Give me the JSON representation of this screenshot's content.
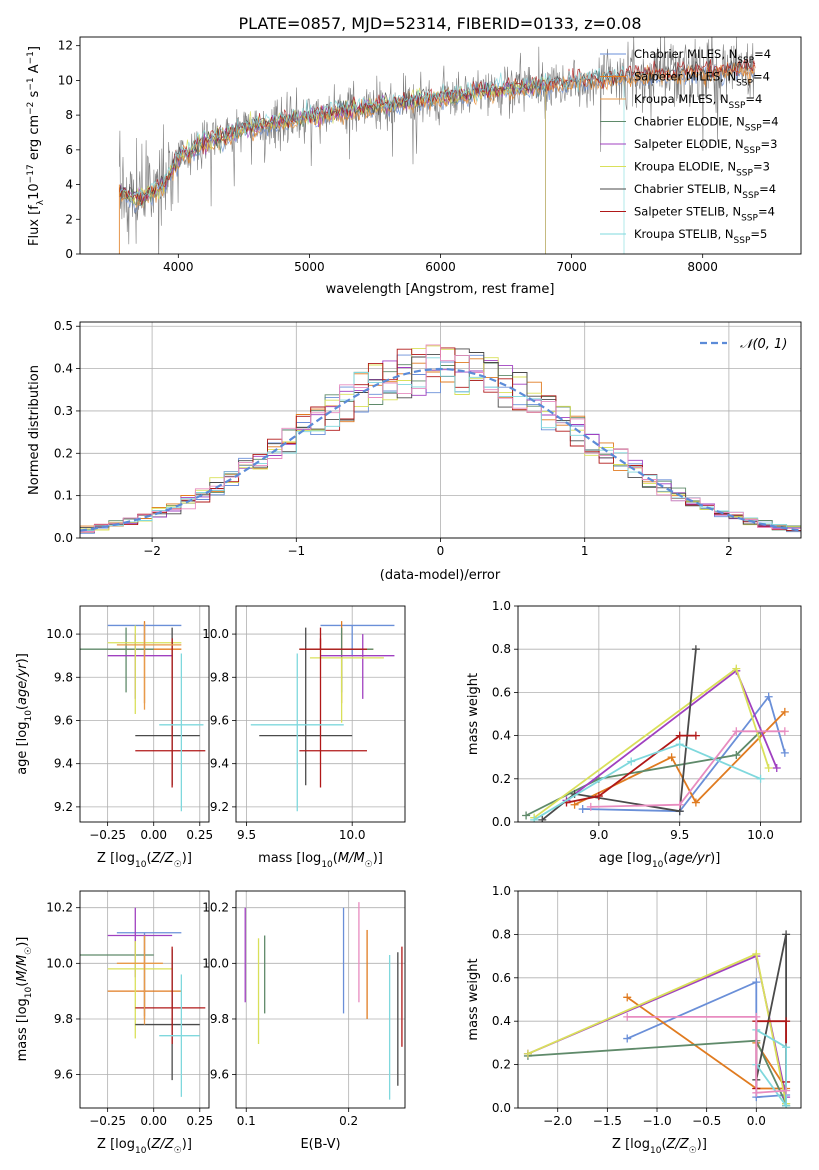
{
  "figure": {
    "title": "PLATE=0857, MJD=52314, FIBERID=0133, z=0.08"
  },
  "palette": {
    "Chabrier MILES": "#6a8fd8",
    "Salpeter MILES": "#e07b20",
    "Kroupa MILES": "#e89a4a",
    "Chabrier ELODIE": "#5f8a6a",
    "Salpeter ELODIE": "#a040c0",
    "Kroupa ELODIE": "#d9e05a",
    "Chabrier STELIB": "#4a4a4a",
    "Salpeter STELIB": "#b01818",
    "Kroupa STELIB": "#7fd8dd",
    "data": "#7f7f7f",
    "pink": "#e88cc0"
  },
  "chart_data": [
    {
      "id": "spectrum",
      "type": "line",
      "xlabel": "wavelength [Angstrom, rest frame]",
      "ylabel": "Flux [f_λ10^-17 erg cm^-2 s^-1 A^-1]",
      "xlim": [
        3250,
        8750
      ],
      "ylim": [
        0,
        12.5
      ],
      "xticks": [
        4000,
        5000,
        6000,
        7000,
        8000
      ],
      "yticks": [
        0,
        2,
        4,
        6,
        8,
        10,
        12
      ],
      "grid": false,
      "legend_position": "top-right",
      "legend": [
        {
          "label": "Chabrier MILES, N_SSP=4",
          "key": "Chabrier MILES"
        },
        {
          "label": "Salpeter MILES, N_SSP=4",
          "key": "Salpeter MILES"
        },
        {
          "label": "Kroupa MILES, N_SSP=4",
          "key": "Kroupa MILES"
        },
        {
          "label": "Chabrier ELODIE, N_SSP=4",
          "key": "Chabrier ELODIE"
        },
        {
          "label": "Salpeter ELODIE, N_SSP=3",
          "key": "Salpeter ELODIE"
        },
        {
          "label": "Kroupa ELODIE, N_SSP=3",
          "key": "Kroupa ELODIE"
        },
        {
          "label": "Chabrier STELIB, N_SSP=4",
          "key": "Chabrier STELIB"
        },
        {
          "label": "Salpeter STELIB, N_SSP=4",
          "key": "Salpeter STELIB"
        },
        {
          "label": "Kroupa STELIB, N_SSP=5",
          "key": "Kroupa STELIB"
        }
      ],
      "continuum": {
        "x": [
          3550,
          3700,
          3900,
          4000,
          4200,
          4500,
          5000,
          5500,
          6000,
          6500,
          7000,
          7400,
          8000,
          8400
        ],
        "y": [
          3.5,
          3.2,
          4.0,
          5.6,
          6.4,
          7.2,
          7.9,
          8.5,
          9.0,
          9.5,
          9.9,
          10.2,
          10.5,
          10.7
        ]
      }
    },
    {
      "id": "residual-hist",
      "type": "histogram",
      "xlabel": "(data-model)/error",
      "ylabel": "Normed distribution",
      "xlim": [
        -2.5,
        2.5
      ],
      "ylim": [
        0,
        0.51
      ],
      "xticks": [
        -2,
        -1,
        0,
        1,
        2
      ],
      "yticks": [
        0.0,
        0.1,
        0.2,
        0.3,
        0.4,
        0.5
      ],
      "grid": true,
      "legend_position": "top-right",
      "legend_label": "𝒩(0, 1)",
      "bin_width": 0.1
    },
    {
      "id": "age-vs-Z",
      "type": "errorbar",
      "xlabel": "Z [log10(Z/Z_☉)]",
      "ylabel": "age  [log10(age/yr)]",
      "xlim": [
        -0.4,
        0.3
      ],
      "ylim": [
        9.13,
        10.13
      ],
      "xticks": [
        -0.25,
        0.0,
        0.25
      ],
      "yticks": [
        9.2,
        9.4,
        9.6,
        9.8,
        10.0
      ],
      "grid": true,
      "points": [
        {
          "key": "Chabrier MILES",
          "x": -0.05,
          "xerr": [
            0.2,
            0.2
          ],
          "y": 10.04,
          "yerr": [
            0.14,
            0.0
          ]
        },
        {
          "key": "Salpeter MILES",
          "x": -0.05,
          "xerr": [
            0.2,
            0.2
          ],
          "y": 9.93,
          "yerr": [
            0.25,
            0.13
          ]
        },
        {
          "key": "Chabrier ELODIE",
          "x": -0.15,
          "xerr": [
            0.25,
            0.15
          ],
          "y": 9.93,
          "yerr": [
            0.2,
            0.1
          ]
        },
        {
          "key": "Salpeter ELODIE",
          "x": -0.1,
          "xerr": [
            0.15,
            0.2
          ],
          "y": 9.9,
          "yerr": [
            0.2,
            0.1
          ]
        },
        {
          "key": "Kroupa ELODIE",
          "x": -0.1,
          "xerr": [
            0.15,
            0.25
          ],
          "y": 9.96,
          "yerr": [
            0.33,
            0.08
          ]
        },
        {
          "key": "Chabrier STELIB",
          "x": 0.1,
          "xerr": [
            0.2,
            0.15
          ],
          "y": 9.53,
          "yerr": [
            0.23,
            0.5
          ]
        },
        {
          "key": "Salpeter STELIB",
          "x": 0.1,
          "xerr": [
            0.2,
            0.18
          ],
          "y": 9.46,
          "yerr": [
            0.17,
            0.52
          ]
        },
        {
          "key": "Kroupa STELIB",
          "x": 0.15,
          "xerr": [
            0.12,
            0.12
          ],
          "y": 9.58,
          "yerr": [
            0.4,
            0.33
          ]
        },
        {
          "key": "Kroupa MILES",
          "x": -0.05,
          "xerr": [
            0.15,
            0.2
          ],
          "y": 9.95,
          "yerr": [
            0.3,
            0.1
          ]
        }
      ]
    },
    {
      "id": "age-vs-mass",
      "type": "errorbar",
      "xlabel": "mass [log10(M/M_☉)]",
      "ylabel": "",
      "xlim": [
        9.45,
        10.25
      ],
      "ylim": [
        9.13,
        10.13
      ],
      "xticks": [
        9.5,
        10.0
      ],
      "yticks": [
        9.2,
        9.4,
        9.6,
        9.8,
        10.0
      ],
      "grid": true,
      "points": [
        {
          "key": "Chabrier MILES",
          "x": 10.0,
          "xerr": [
            0.15,
            0.2
          ],
          "y": 10.04,
          "yerr": [
            0.14,
            0.0
          ]
        },
        {
          "key": "Salpeter MILES",
          "x": 9.95,
          "xerr": [
            0.2,
            0.15
          ],
          "y": 9.93,
          "yerr": [
            0.25,
            0.13
          ]
        },
        {
          "key": "Chabrier ELODIE",
          "x": 9.95,
          "xerr": [
            0.2,
            0.15
          ],
          "y": 9.93,
          "yerr": [
            0.2,
            0.1
          ]
        },
        {
          "key": "Salpeter ELODIE",
          "x": 10.05,
          "xerr": [
            0.2,
            0.15
          ],
          "y": 9.9,
          "yerr": [
            0.2,
            0.1
          ]
        },
        {
          "key": "Kroupa ELODIE",
          "x": 9.95,
          "xerr": [
            0.15,
            0.2
          ],
          "y": 9.89,
          "yerr": [
            0.3,
            0.0
          ]
        },
        {
          "key": "Chabrier STELIB",
          "x": 9.78,
          "xerr": [
            0.22,
            0.22
          ],
          "y": 9.53,
          "yerr": [
            0.23,
            0.5
          ]
        },
        {
          "key": "Salpeter STELIB",
          "x": 9.85,
          "xerr": [
            0.1,
            0.22
          ],
          "y": 9.46,
          "yerr": [
            0.17,
            0.52
          ]
        },
        {
          "key": "Kroupa STELIB",
          "x": 9.74,
          "xerr": [
            0.22,
            0.22
          ],
          "y": 9.58,
          "yerr": [
            0.4,
            0.33
          ]
        },
        {
          "key": "Salpeter STELIB",
          "x": 9.85,
          "xerr": [
            0.1,
            0.22
          ],
          "y": 9.93,
          "yerr": [
            0.0,
            0.1
          ]
        }
      ]
    },
    {
      "id": "massweight-vs-age",
      "type": "line",
      "xlabel": "age  [log10(age/yr)]",
      "ylabel": "mass weight",
      "xlim": [
        8.5,
        10.25
      ],
      "ylim": [
        0.0,
        1.0
      ],
      "xticks": [
        9.0,
        9.5,
        10.0
      ],
      "yticks": [
        0.0,
        0.2,
        0.4,
        0.6,
        0.8,
        1.0
      ],
      "grid": true,
      "series": [
        {
          "key": "Chabrier MILES",
          "x": [
            8.9,
            9.5,
            10.05,
            10.15
          ],
          "y": [
            0.06,
            0.05,
            0.58,
            0.32
          ]
        },
        {
          "key": "Salpeter MILES",
          "x": [
            8.85,
            9.45,
            9.6,
            10.15
          ],
          "y": [
            0.08,
            0.3,
            0.09,
            0.51
          ]
        },
        {
          "key": "Chabrier ELODIE",
          "x": [
            8.55,
            9.0,
            9.85,
            10.0
          ],
          "y": [
            0.03,
            0.2,
            0.31,
            0.42
          ]
        },
        {
          "key": "Salpeter ELODIE",
          "x": [
            8.8,
            9.85,
            10.1
          ],
          "y": [
            0.1,
            0.7,
            0.25
          ]
        },
        {
          "key": "Kroupa ELODIE",
          "x": [
            8.6,
            9.85,
            10.05
          ],
          "y": [
            0.02,
            0.71,
            0.25
          ]
        },
        {
          "key": "Chabrier STELIB",
          "x": [
            8.65,
            8.85,
            9.5,
            9.6
          ],
          "y": [
            0.01,
            0.13,
            0.05,
            0.8
          ]
        },
        {
          "key": "Salpeter STELIB",
          "x": [
            8.8,
            9.0,
            9.5,
            9.6
          ],
          "y": [
            0.09,
            0.12,
            0.4,
            0.4
          ]
        },
        {
          "key": "Kroupa STELIB",
          "x": [
            8.6,
            9.2,
            9.5,
            10.0
          ],
          "y": [
            0.01,
            0.28,
            0.36,
            0.2
          ]
        },
        {
          "key": "pink",
          "x": [
            8.95,
            9.5,
            9.85,
            10.15
          ],
          "y": [
            0.07,
            0.08,
            0.42,
            0.42
          ]
        }
      ]
    },
    {
      "id": "mass-vs-Z",
      "type": "errorbar",
      "xlabel": "Z [log10(Z/Z_☉)]",
      "ylabel": "mass [log10(M/M_☉)]",
      "xlim": [
        -0.4,
        0.3
      ],
      "ylim": [
        9.48,
        10.26
      ],
      "xticks": [
        -0.25,
        0.0,
        0.25
      ],
      "yticks": [
        9.6,
        9.8,
        10.0,
        10.2
      ],
      "grid": true,
      "points": [
        {
          "key": "Chabrier MILES",
          "x": -0.05,
          "xerr": [
            0.15,
            0.2
          ],
          "y": 10.11,
          "yerr": [
            0.3,
            0.0
          ]
        },
        {
          "key": "Salpeter MILES",
          "x": -0.05,
          "xerr": [
            0.2,
            0.2
          ],
          "y": 9.9,
          "yerr": [
            0.1,
            0.2
          ]
        },
        {
          "key": "Chabrier ELODIE",
          "x": -0.15,
          "xerr": [
            0.25,
            0.15
          ],
          "y": 10.03,
          "yerr": [
            0.0,
            0.0
          ]
        },
        {
          "key": "Salpeter ELODIE",
          "x": -0.1,
          "xerr": [
            0.15,
            0.2
          ],
          "y": 10.1,
          "yerr": [
            0.15,
            0.1
          ]
        },
        {
          "key": "Kroupa ELODIE",
          "x": -0.1,
          "xerr": [
            0.15,
            0.2
          ],
          "y": 9.98,
          "yerr": [
            0.25,
            0.1
          ]
        },
        {
          "key": "Chabrier STELIB",
          "x": 0.1,
          "xerr": [
            0.2,
            0.15
          ],
          "y": 9.78,
          "yerr": [
            0.2,
            0.27
          ]
        },
        {
          "key": "Salpeter STELIB",
          "x": 0.1,
          "xerr": [
            0.2,
            0.18
          ],
          "y": 9.84,
          "yerr": [
            0.13,
            0.22
          ]
        },
        {
          "key": "Kroupa STELIB",
          "x": 0.15,
          "xerr": [
            0.12,
            0.1
          ],
          "y": 9.74,
          "yerr": [
            0.22,
            0.22
          ]
        },
        {
          "key": "Kroupa MILES",
          "x": -0.05,
          "xerr": [
            0.15,
            0.1
          ],
          "y": 10.0,
          "yerr": [
            0.22,
            0.1
          ]
        }
      ]
    },
    {
      "id": "mass-vs-ebv",
      "type": "errorbar",
      "xlabel": "E(B-V)",
      "ylabel": "",
      "xlim": [
        0.09,
        0.255
      ],
      "ylim": [
        9.48,
        10.26
      ],
      "xticks": [
        0.1,
        0.2
      ],
      "yticks": [
        9.6,
        9.8,
        10.0,
        10.2
      ],
      "grid": true,
      "points": [
        {
          "key": "Salpeter ELODIE",
          "x": 0.099,
          "y": 10.03,
          "yerr": [
            0.17,
            0.17
          ]
        },
        {
          "key": "Kroupa ELODIE",
          "x": 0.112,
          "y": 9.9,
          "yerr": [
            0.19,
            0.19
          ]
        },
        {
          "key": "Chabrier ELODIE",
          "x": 0.118,
          "y": 9.96,
          "yerr": [
            0.14,
            0.14
          ]
        },
        {
          "key": "Chabrier MILES",
          "x": 0.195,
          "y": 10.01,
          "yerr": [
            0.19,
            0.19
          ]
        },
        {
          "key": "pink",
          "x": 0.21,
          "y": 10.04,
          "yerr": [
            0.18,
            0.18
          ]
        },
        {
          "key": "Salpeter MILES",
          "x": 0.218,
          "y": 9.96,
          "yerr": [
            0.16,
            0.16
          ]
        },
        {
          "key": "Kroupa STELIB",
          "x": 0.24,
          "y": 9.77,
          "yerr": [
            0.26,
            0.26
          ]
        },
        {
          "key": "Chabrier STELIB",
          "x": 0.248,
          "y": 9.8,
          "yerr": [
            0.24,
            0.24
          ]
        },
        {
          "key": "Salpeter STELIB",
          "x": 0.252,
          "y": 9.88,
          "yerr": [
            0.18,
            0.18
          ]
        }
      ]
    },
    {
      "id": "massweight-vs-Z",
      "type": "line",
      "xlabel": "Z [log10(Z/Z_☉)]",
      "ylabel": "mass weight",
      "xlim": [
        -2.4,
        0.45
      ],
      "ylim": [
        0.0,
        1.0
      ],
      "xticks": [
        -2.0,
        -1.5,
        -1.0,
        -0.5,
        0.0
      ],
      "yticks": [
        0.0,
        0.2,
        0.4,
        0.6,
        0.8,
        1.0
      ],
      "grid": true,
      "series": [
        {
          "key": "Chabrier MILES",
          "x": [
            -1.3,
            0.0,
            0.0,
            0.3
          ],
          "y": [
            0.32,
            0.58,
            0.05,
            0.06
          ]
        },
        {
          "key": "Salpeter MILES",
          "x": [
            -1.3,
            0.0,
            0.3,
            0.0
          ],
          "y": [
            0.51,
            0.09,
            0.09,
            0.3
          ]
        },
        {
          "key": "Chabrier ELODIE",
          "x": [
            -2.3,
            0.0,
            0.3
          ],
          "y": [
            0.24,
            0.31,
            0.02
          ]
        },
        {
          "key": "Salpeter ELODIE",
          "x": [
            -2.3,
            0.0,
            0.3
          ],
          "y": [
            0.25,
            0.7,
            0.05
          ]
        },
        {
          "key": "Kroupa ELODIE",
          "x": [
            -2.3,
            0.0,
            0.3
          ],
          "y": [
            0.25,
            0.71,
            0.02
          ]
        },
        {
          "key": "Chabrier STELIB",
          "x": [
            0.0,
            0.3,
            0.3
          ],
          "y": [
            0.13,
            0.8,
            0.01
          ]
        },
        {
          "key": "Salpeter STELIB",
          "x": [
            0.0,
            0.0,
            0.3,
            0.3
          ],
          "y": [
            0.09,
            0.4,
            0.4,
            0.12
          ]
        },
        {
          "key": "Kroupa STELIB",
          "x": [
            0.0,
            0.3,
            0.3,
            0.0
          ],
          "y": [
            0.36,
            0.28,
            0.01,
            0.2
          ]
        },
        {
          "key": "pink",
          "x": [
            -1.3,
            0.0,
            0.0,
            0.3
          ],
          "y": [
            0.42,
            0.42,
            0.07,
            0.08
          ]
        }
      ]
    }
  ]
}
